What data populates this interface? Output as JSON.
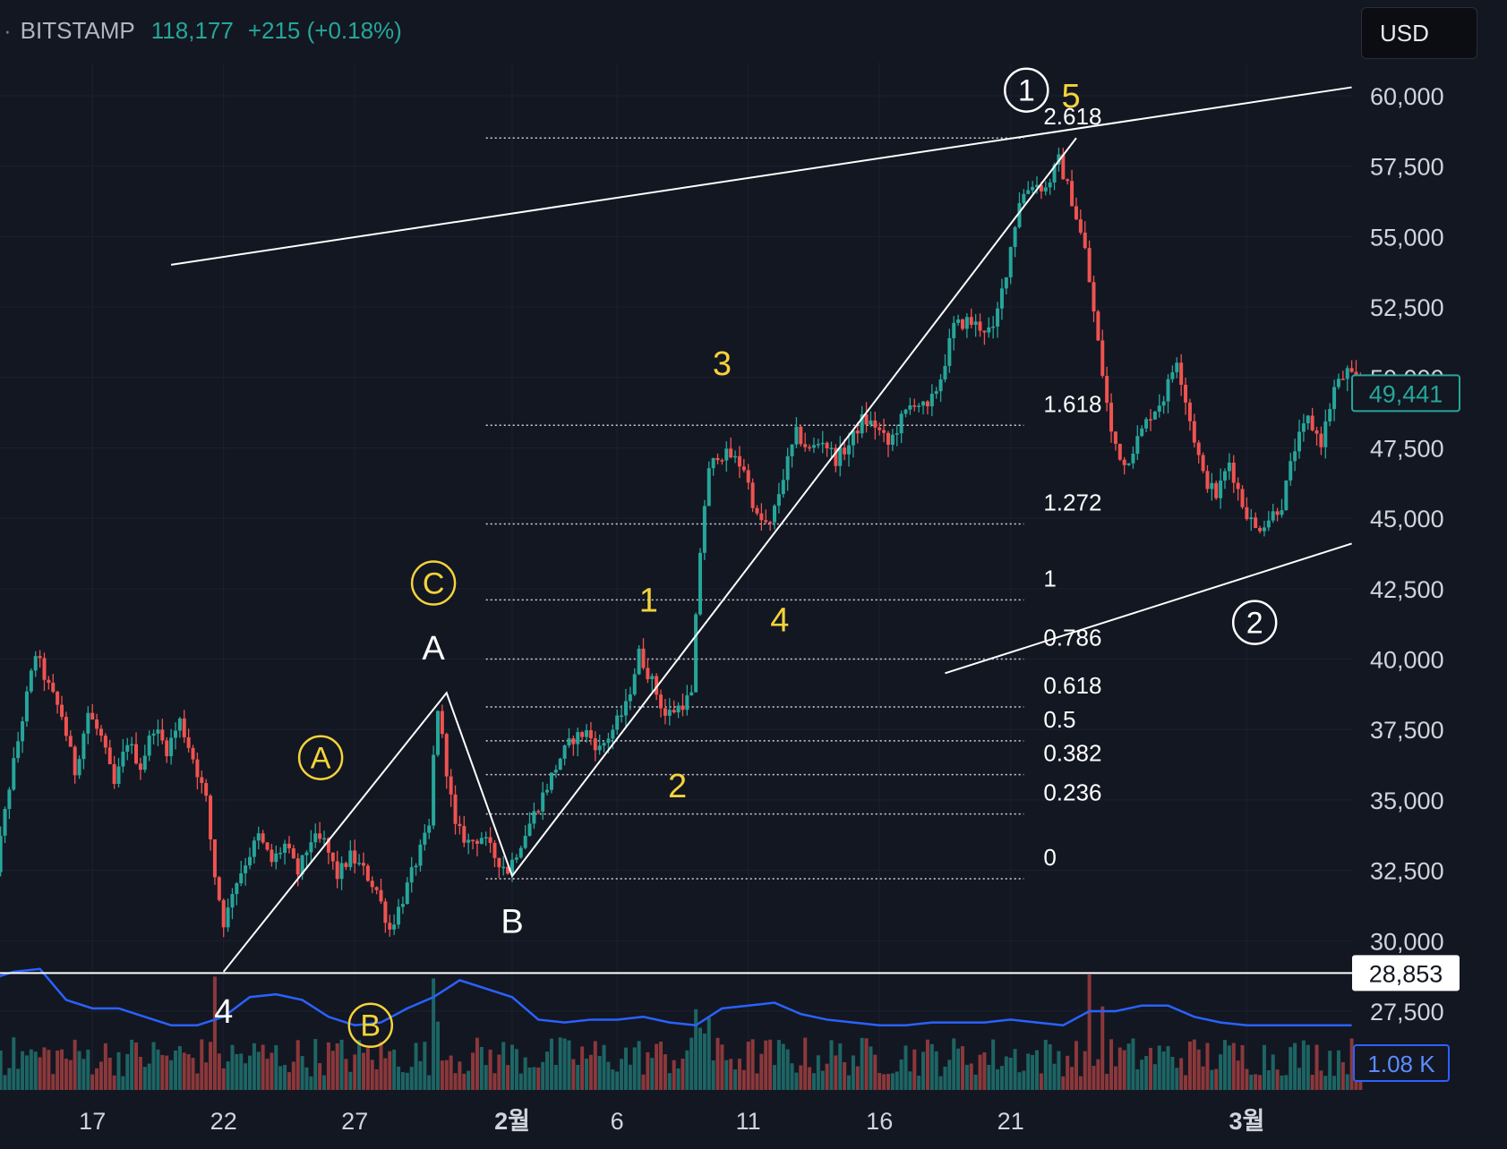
{
  "header": {
    "exchange": "BITSTAMP",
    "price": "118,177",
    "change": "+215 (+0.18%)"
  },
  "currency": "USD",
  "colors": {
    "background": "#131722",
    "up": "#26a69a",
    "down": "#ef5350",
    "volume_ma": "#2962ff",
    "annotation_yellow": "#f5d33a",
    "annotation_white": "#ffffff"
  },
  "chart_data": {
    "type": "candlestick",
    "y_axis": {
      "range": [
        26100,
        62700
      ],
      "ticks": [
        60000,
        57500,
        55000,
        52500,
        50000,
        47500,
        45000,
        42500,
        40000,
        37500,
        35000,
        32500,
        30000,
        27500
      ],
      "tick_labels": [
        "60,000",
        "57,500",
        "55,000",
        "52,500",
        "50,000",
        "47,500",
        "45,000",
        "42,500",
        "40,000",
        "37,500",
        "35,000",
        "32,500",
        "30,000",
        "27,500"
      ]
    },
    "x_axis": {
      "labels": [
        "17",
        "22",
        "27",
        "2월",
        "6",
        "11",
        "16",
        "21",
        "3월"
      ],
      "label_days": [
        -16,
        -11,
        -6,
        0,
        4,
        9,
        14,
        19,
        28
      ]
    },
    "price_path": [
      [
        -20,
        33800
      ],
      [
        -19.5,
        32600
      ],
      [
        -19,
        35500
      ],
      [
        -18.5,
        37900
      ],
      [
        -18,
        40200
      ],
      [
        -17.5,
        39000
      ],
      [
        -17,
        38000
      ],
      [
        -16.5,
        36000
      ],
      [
        -16,
        38100
      ],
      [
        -15.5,
        37200
      ],
      [
        -15,
        35500
      ],
      [
        -14.5,
        37100
      ],
      [
        -14,
        36200
      ],
      [
        -13.5,
        37600
      ],
      [
        -13,
        36800
      ],
      [
        -12.5,
        37800
      ],
      [
        -12,
        36500
      ],
      [
        -11.5,
        35000
      ],
      [
        -11.2,
        32500
      ],
      [
        -10.8,
        30500
      ],
      [
        -10.5,
        31800
      ],
      [
        -10,
        32800
      ],
      [
        -9.5,
        33700
      ],
      [
        -9,
        32800
      ],
      [
        -8.5,
        33400
      ],
      [
        -8,
        32400
      ],
      [
        -7.5,
        33600
      ],
      [
        -7,
        33500
      ],
      [
        -6.5,
        32300
      ],
      [
        -6,
        33000
      ],
      [
        -5.5,
        32500
      ],
      [
        -5,
        31800
      ],
      [
        -4.5,
        30400
      ],
      [
        -4,
        31500
      ],
      [
        -3.5,
        32800
      ],
      [
        -3,
        34000
      ],
      [
        -2.7,
        38500
      ],
      [
        -2.4,
        36500
      ],
      [
        -2,
        34000
      ],
      [
        -1.5,
        33500
      ],
      [
        -1,
        33700
      ],
      [
        -0.5,
        33000
      ],
      [
        0,
        32500
      ],
      [
        0.5,
        33500
      ],
      [
        1,
        34500
      ],
      [
        1.5,
        35500
      ],
      [
        2,
        36500
      ],
      [
        2.5,
        37200
      ],
      [
        3,
        37400
      ],
      [
        3.5,
        36800
      ],
      [
        4,
        37500
      ],
      [
        4.5,
        38300
      ],
      [
        5,
        40200
      ],
      [
        5.5,
        39200
      ],
      [
        6,
        38000
      ],
      [
        6.5,
        38300
      ],
      [
        7,
        38700
      ],
      [
        7.3,
        43500
      ],
      [
        7.6,
        46500
      ],
      [
        8,
        47300
      ],
      [
        8.5,
        47200
      ],
      [
        9,
        46800
      ],
      [
        9.5,
        45000
      ],
      [
        10,
        44700
      ],
      [
        10.5,
        46500
      ],
      [
        11,
        48000
      ],
      [
        11.5,
        47400
      ],
      [
        12,
        47800
      ],
      [
        12.5,
        47100
      ],
      [
        13,
        47600
      ],
      [
        13.5,
        48500
      ],
      [
        14,
        48300
      ],
      [
        14.5,
        47600
      ],
      [
        15,
        48500
      ],
      [
        15.5,
        49200
      ],
      [
        16,
        48800
      ],
      [
        16.5,
        50000
      ],
      [
        17,
        51800
      ],
      [
        17.5,
        52000
      ],
      [
        18,
        51800
      ],
      [
        18.5,
        51600
      ],
      [
        19,
        53800
      ],
      [
        19.5,
        56300
      ],
      [
        20,
        56900
      ],
      [
        20.5,
        56700
      ],
      [
        21,
        57700
      ],
      [
        21.5,
        56300
      ],
      [
        22,
        54500
      ],
      [
        22.5,
        51200
      ],
      [
        23,
        48000
      ],
      [
        23.5,
        46900
      ],
      [
        24,
        47800
      ],
      [
        24.5,
        48700
      ],
      [
        25,
        49300
      ],
      [
        25.5,
        50700
      ],
      [
        26,
        48500
      ],
      [
        26.5,
        46500
      ],
      [
        27,
        45800
      ],
      [
        27.5,
        47000
      ],
      [
        28,
        45500
      ],
      [
        28.5,
        44600
      ],
      [
        29,
        45000
      ],
      [
        29.5,
        45500
      ],
      [
        30,
        47500
      ],
      [
        30.5,
        48500
      ],
      [
        31,
        47700
      ],
      [
        31.5,
        49600
      ],
      [
        32,
        50200
      ],
      [
        32.5,
        49500
      ]
    ],
    "volume_ma_path": [
      [
        -20,
        28.6
      ],
      [
        -19,
        28.9
      ],
      [
        -18,
        29.0
      ],
      [
        -17,
        27.9
      ],
      [
        -16,
        27.6
      ],
      [
        -15,
        27.6
      ],
      [
        -14,
        27.3
      ],
      [
        -13,
        27.0
      ],
      [
        -12,
        27.0
      ],
      [
        -11,
        27.3
      ],
      [
        -10,
        28.0
      ],
      [
        -9,
        28.1
      ],
      [
        -8,
        27.9
      ],
      [
        -7,
        27.3
      ],
      [
        -6,
        27.0
      ],
      [
        -5,
        27.1
      ],
      [
        -4,
        27.6
      ],
      [
        -3,
        28.0
      ],
      [
        -2,
        28.6
      ],
      [
        -1,
        28.3
      ],
      [
        0,
        28.0
      ],
      [
        1,
        27.2
      ],
      [
        2,
        27.1
      ],
      [
        3,
        27.2
      ],
      [
        4,
        27.2
      ],
      [
        5,
        27.3
      ],
      [
        6,
        27.1
      ],
      [
        7,
        27.0
      ],
      [
        8,
        27.6
      ],
      [
        9,
        27.7
      ],
      [
        10,
        27.8
      ],
      [
        11,
        27.4
      ],
      [
        12,
        27.2
      ],
      [
        13,
        27.1
      ],
      [
        14,
        27.0
      ],
      [
        15,
        27.0
      ],
      [
        16,
        27.1
      ],
      [
        17,
        27.1
      ],
      [
        18,
        27.1
      ],
      [
        19,
        27.2
      ],
      [
        20,
        27.1
      ],
      [
        21,
        27.0
      ],
      [
        22,
        27.5
      ],
      [
        23,
        27.5
      ],
      [
        24,
        27.7
      ],
      [
        25,
        27.7
      ],
      [
        26,
        27.3
      ],
      [
        27,
        27.1
      ],
      [
        28,
        27.0
      ],
      [
        29,
        27.0
      ],
      [
        30,
        27.0
      ],
      [
        31,
        27.0
      ],
      [
        32,
        27.0
      ]
    ],
    "price_label": "49,441",
    "horizontal_line": {
      "price": 28853,
      "label": "28,853"
    },
    "volume_ma_label": "1.08 K",
    "fib_levels": [
      {
        "label": "2.618",
        "price": 58500
      },
      {
        "label": "1.618",
        "price": 48300
      },
      {
        "label": "1.272",
        "price": 44800
      },
      {
        "label": "1",
        "price": 42100
      },
      {
        "label": "0.786",
        "price": 40000
      },
      {
        "label": "0.618",
        "price": 38300
      },
      {
        "label": "0.5",
        "price": 37100
      },
      {
        "label": "0.382",
        "price": 35900
      },
      {
        "label": "0.236",
        "price": 34500
      },
      {
        "label": "0",
        "price": 32200
      }
    ],
    "fib_range_days": [
      -1,
      19.5
    ],
    "trend_lines": [
      {
        "from": [
          -13,
          54000
        ],
        "to": [
          32,
          60300
        ]
      },
      {
        "from": [
          16.5,
          39500
        ],
        "to": [
          32,
          44100
        ]
      }
    ],
    "wave_lines": [
      [
        [
          -11,
          28900
        ],
        [
          -2.5,
          38800
        ],
        [
          0,
          32300
        ],
        [
          21.5,
          58500
        ]
      ]
    ],
    "wave_labels": [
      {
        "text": "A",
        "day": -3,
        "price": 40400,
        "color": "white",
        "circled": false
      },
      {
        "text": "B",
        "day": 0,
        "price": 30700,
        "color": "white",
        "circled": false
      },
      {
        "text": "4",
        "day": -11,
        "price": 27500,
        "color": "white",
        "circled": false
      },
      {
        "text": "A",
        "day": -7.3,
        "price": 36500,
        "color": "yellow",
        "circled": true
      },
      {
        "text": "B",
        "day": -5.4,
        "price": 27000,
        "color": "yellow",
        "circled": true
      },
      {
        "text": "C",
        "day": -3,
        "price": 42700,
        "color": "yellow",
        "circled": true
      },
      {
        "text": "1",
        "day": 5.2,
        "price": 42100,
        "color": "yellow",
        "circled": false
      },
      {
        "text": "2",
        "day": 6.3,
        "price": 35500,
        "color": "yellow",
        "circled": false
      },
      {
        "text": "3",
        "day": 8,
        "price": 50500,
        "color": "yellow",
        "circled": false
      },
      {
        "text": "4",
        "day": 10.2,
        "price": 41400,
        "color": "yellow",
        "circled": false
      },
      {
        "text": "5",
        "day": 21.3,
        "price": 60000,
        "color": "yellow",
        "circled": false
      },
      {
        "text": "1",
        "day": 19.6,
        "price": 60200,
        "color": "white",
        "circled": true
      },
      {
        "text": "2",
        "day": 28.3,
        "price": 41300,
        "color": "white",
        "circled": true
      }
    ]
  }
}
